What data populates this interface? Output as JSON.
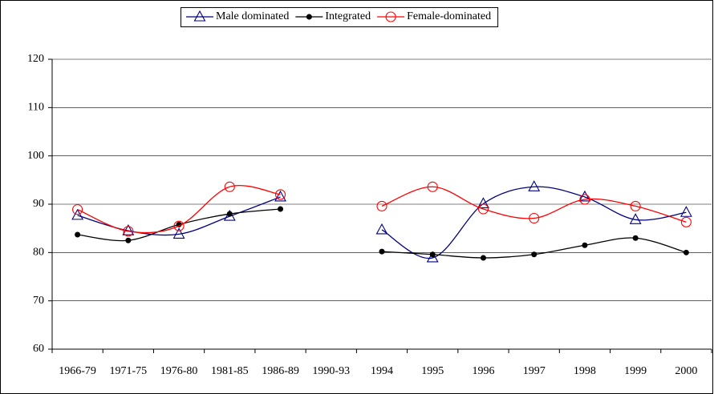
{
  "chart_data": {
    "type": "line",
    "categories": [
      "1966-79",
      "1971-75",
      "1976-80",
      "1981-85",
      "1986-89",
      "1990-93",
      "1994",
      "1995",
      "1996",
      "1997",
      "1998",
      "1999",
      "2000"
    ],
    "series": [
      {
        "name": "Male dominated",
        "color": "#000080",
        "marker": "triangle",
        "values": [
          87.7,
          84.5,
          83.8,
          87.5,
          91.5,
          null,
          84.7,
          78.9,
          90.1,
          93.6,
          91.5,
          86.8,
          88.3
        ]
      },
      {
        "name": "Integrated",
        "color": "#000000",
        "marker": "filled-circle",
        "values": [
          83.7,
          82.5,
          85.8,
          88.0,
          89.0,
          null,
          80.2,
          79.6,
          78.9,
          79.6,
          81.5,
          83.0,
          80.0
        ]
      },
      {
        "name": "Female-dominated",
        "color": "#ff0000",
        "marker": "open-circle",
        "values": [
          88.9,
          84.4,
          85.5,
          93.6,
          92.0,
          null,
          89.6,
          93.6,
          89.0,
          87.1,
          91.0,
          89.6,
          86.3
        ]
      }
    ],
    "ylim": [
      60,
      120
    ],
    "yticks": [
      60,
      70,
      80,
      90,
      100,
      110,
      120
    ],
    "grid": true,
    "smooth": true,
    "legend": "top"
  }
}
